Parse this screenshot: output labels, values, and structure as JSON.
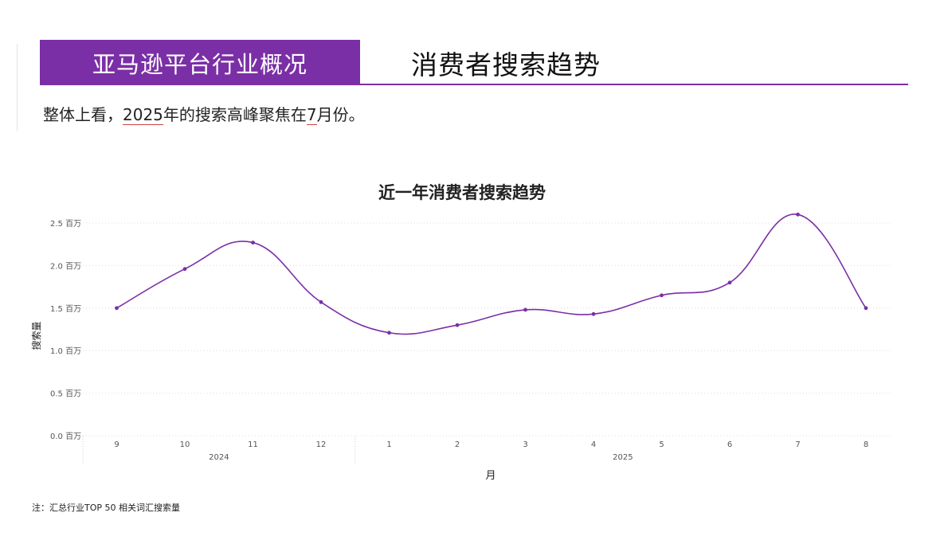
{
  "header": {
    "section_label": "亚马逊平台行业概况",
    "title": "消费者搜索趋势"
  },
  "summary": {
    "prefix": "整体上看，",
    "year": "2025",
    "middle": "年的搜索高峰聚焦在",
    "month": "7",
    "suffix": "月份。"
  },
  "chart_data": {
    "type": "line",
    "title": "近一年消费者搜索趋势",
    "xlabel": "月",
    "ylabel": "搜索量",
    "categories": [
      "9",
      "10",
      "11",
      "12",
      "1",
      "2",
      "3",
      "4",
      "5",
      "6",
      "7",
      "8"
    ],
    "year_groups": [
      {
        "label": "2024",
        "count": 4
      },
      {
        "label": "2025",
        "count": 8
      }
    ],
    "series": [
      {
        "values": [
          1.5,
          1.96,
          2.27,
          1.57,
          1.21,
          1.3,
          1.48,
          1.43,
          1.65,
          1.8,
          2.6,
          1.5
        ]
      }
    ],
    "unit": "百万",
    "ylim": [
      0,
      2.5
    ],
    "yticks": [
      "0.0 百万",
      "0.5 百万",
      "1.0 百万",
      "1.5 百万",
      "2.0 百万",
      "2.5 百万"
    ],
    "grid": true,
    "line_color": "#7b2fa6"
  },
  "footnote": "注：汇总行业TOP 50 相关词汇搜索量"
}
